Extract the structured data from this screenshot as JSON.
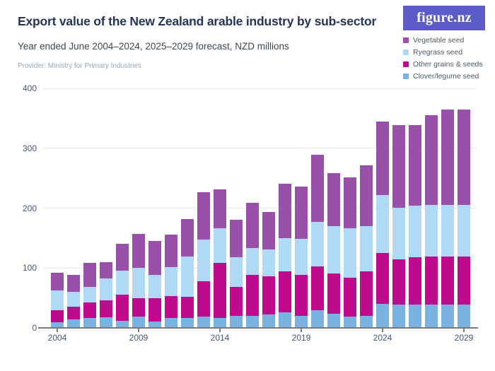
{
  "header": {
    "title": "Export value of the New Zealand arable industry by sub-sector",
    "subtitle": "Year ended June 2004–2024, 2025–2029 forecast, NZD millions",
    "provider": "Provider: Ministry for Primary Industries"
  },
  "logo": {
    "text": "figure.nz",
    "bg_color": "#5b5cc8",
    "text_color": "#ffffff"
  },
  "colors": {
    "vegetable_seed": "#9850a8",
    "ryegrass_seed": "#b0d9f6",
    "other_grains_seeds": "#be0a8c",
    "clover_legume_seed": "#7ab2e2",
    "axis_text": "#46557a",
    "gridline": "#eaeaee",
    "axis_line": "#77787b",
    "title_text": "#263455"
  },
  "chart_data": {
    "type": "bar",
    "stacked": true,
    "title": "Export value of the New Zealand arable industry by sub-sector",
    "subtitle": "Year ended June 2004–2024, 2025–2029 forecast, NZD millions",
    "unit": "NZD millions",
    "categories": [
      2004,
      2005,
      2006,
      2007,
      2008,
      2009,
      2010,
      2011,
      2012,
      2013,
      2014,
      2015,
      2016,
      2017,
      2018,
      2019,
      2020,
      2021,
      2022,
      2023,
      2024,
      2025,
      2026,
      2027,
      2028,
      2029
    ],
    "series": [
      {
        "name": "Vegetable seed",
        "color": "#9850a8",
        "values": [
          29,
          29,
          40,
          27,
          45,
          57,
          56,
          55,
          63,
          80,
          65,
          62,
          76,
          63,
          91,
          87,
          112,
          89,
          85,
          101,
          123,
          138,
          135,
          150,
          160,
          160
        ]
      },
      {
        "name": "Ryegrass seed",
        "color": "#b0d9f6",
        "values": [
          33,
          25,
          25,
          37,
          41,
          50,
          40,
          48,
          67,
          69,
          57,
          50,
          45,
          45,
          55,
          61,
          74,
          79,
          82,
          76,
          97,
          86,
          86,
          86,
          86,
          86
        ]
      },
      {
        "name": "Other grains & seeds",
        "color": "#be0a8c",
        "values": [
          20,
          21,
          26,
          28,
          43,
          31,
          38,
          37,
          35,
          59,
          92,
          48,
          68,
          64,
          69,
          68,
          74,
          67,
          65,
          74,
          85,
          76,
          79,
          80,
          80,
          80
        ]
      },
      {
        "name": "Clover/legume seed",
        "color": "#7ab2e2",
        "values": [
          10,
          14,
          17,
          18,
          12,
          19,
          11,
          16,
          17,
          19,
          17,
          20,
          20,
          22,
          26,
          20,
          29,
          24,
          19,
          20,
          40,
          39,
          39,
          39,
          39,
          39
        ]
      }
    ],
    "stack_bottom_to_top": [
      "Clover/legume seed",
      "Other grains & seeds",
      "Ryegrass seed",
      "Vegetable seed"
    ],
    "ylim": [
      0,
      400
    ],
    "yticks": [
      0,
      100,
      200,
      300,
      400
    ],
    "xticks": [
      2004,
      2009,
      2014,
      2019,
      2024,
      2029
    ],
    "grid": true,
    "legend_position": "top-right"
  }
}
